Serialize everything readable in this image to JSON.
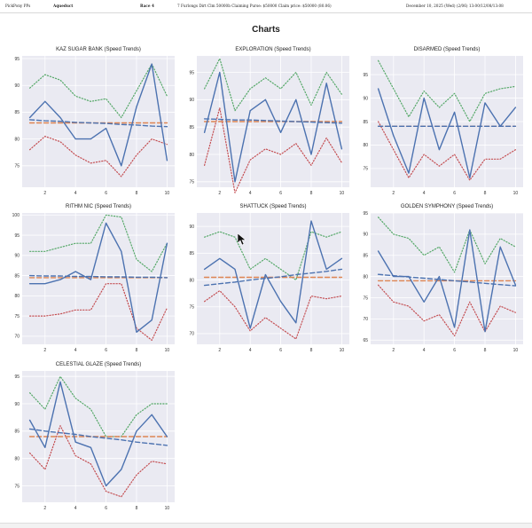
{
  "header": {
    "app": "PickPony PPs",
    "track": "Aqueduct",
    "race": "Race 4",
    "race_info": "7 Furlongs Dirt Clm 50000b Claiming Purse: $50000 Claim price: $50000 (80.06)",
    "date": "December 10, 2025 (Wed) (2/06) 13:00/12/08/13:08"
  },
  "page_title": "Charts",
  "chart_data": [
    {
      "type": "line",
      "title": "KAZ SUGAR BANK (Speed Trends)",
      "x": [
        1,
        2,
        3,
        4,
        5,
        6,
        7,
        8,
        9,
        10
      ],
      "series": [
        {
          "role": "main",
          "values": [
            84,
            87,
            84,
            80,
            80,
            82,
            75,
            86,
            94,
            76
          ]
        },
        {
          "role": "upper",
          "values": [
            89.5,
            92,
            91,
            88,
            87,
            87.5,
            84,
            89,
            94,
            88
          ]
        },
        {
          "role": "lower",
          "values": [
            78,
            80.5,
            79.5,
            77,
            75.5,
            76,
            73,
            77,
            80,
            79
          ]
        },
        {
          "role": "trend",
          "values": [
            83.6,
            83.4,
            83.3,
            83.1,
            83.0,
            82.9,
            82.7,
            82.6,
            82.4,
            82.3
          ]
        },
        {
          "role": "mean",
          "values": [
            83,
            83,
            83,
            83,
            83,
            83,
            83,
            83,
            83,
            83
          ]
        }
      ],
      "xticks": [
        2,
        4,
        6,
        8,
        10
      ],
      "yticks": [
        75,
        80,
        85,
        90,
        95
      ],
      "ylim": [
        71,
        95.5
      ],
      "grid": true
    },
    {
      "type": "line",
      "title": "EXPLORATION (Speed Trends)",
      "x": [
        1,
        2,
        3,
        4,
        5,
        6,
        7,
        8,
        9,
        10
      ],
      "series": [
        {
          "role": "main",
          "values": [
            84,
            95,
            75,
            88,
            90,
            84,
            90,
            80,
            93,
            81
          ]
        },
        {
          "role": "upper",
          "values": [
            92,
            97.5,
            88,
            92,
            94,
            92,
            95,
            89,
            95,
            91
          ]
        },
        {
          "role": "lower",
          "values": [
            78,
            88.5,
            73,
            79,
            81,
            80,
            82,
            78,
            83,
            78.5
          ]
        },
        {
          "role": "trend",
          "values": [
            86.5,
            86.4,
            86.3,
            86.3,
            86.2,
            86.1,
            86.0,
            85.9,
            85.8,
            85.7
          ]
        },
        {
          "role": "mean",
          "values": [
            86,
            86,
            86,
            86,
            86,
            86,
            86,
            86,
            86,
            86
          ]
        }
      ],
      "xticks": [
        2,
        4,
        6,
        8,
        10
      ],
      "yticks": [
        75,
        80,
        85,
        90,
        95
      ],
      "ylim": [
        74,
        98
      ],
      "grid": true
    },
    {
      "type": "line",
      "title": "DISARMED (Speed Trends)",
      "x": [
        1,
        2,
        3,
        4,
        5,
        6,
        7,
        8,
        9,
        10
      ],
      "series": [
        {
          "role": "main",
          "values": [
            92,
            82,
            74,
            90,
            79,
            87,
            73,
            89,
            84,
            88
          ]
        },
        {
          "role": "upper",
          "values": [
            98,
            92,
            86,
            91.5,
            88,
            91,
            85,
            91,
            92,
            92.5
          ]
        },
        {
          "role": "lower",
          "values": [
            85,
            79,
            73,
            78,
            75.5,
            78,
            72.5,
            77,
            77,
            79
          ]
        },
        {
          "role": "trend",
          "values": [
            84.0,
            84.0,
            84.0,
            84.0,
            84.0,
            84.0,
            84.0,
            84.0,
            84.0,
            84.0
          ]
        },
        {
          "role": "mean",
          "values": [
            84,
            84,
            84,
            84,
            84,
            84,
            84,
            84,
            84,
            84
          ]
        }
      ],
      "xticks": [
        2,
        4,
        6,
        8,
        10
      ],
      "yticks": [
        75,
        80,
        85,
        90,
        95
      ],
      "ylim": [
        71,
        99
      ],
      "grid": true
    },
    {
      "type": "line",
      "title": "RITHM NIC (Speed Trends)",
      "x": [
        1,
        2,
        3,
        4,
        5,
        6,
        7,
        8,
        9,
        10
      ],
      "series": [
        {
          "role": "main",
          "values": [
            83,
            83,
            84,
            86,
            84,
            98,
            91,
            71,
            74,
            93
          ]
        },
        {
          "role": "upper",
          "values": [
            91,
            91,
            92,
            93,
            93,
            100,
            99.5,
            89,
            86,
            93
          ]
        },
        {
          "role": "lower",
          "values": [
            75,
            75,
            75.5,
            76.5,
            76.5,
            83,
            83,
            72,
            69,
            77
          ]
        },
        {
          "role": "trend",
          "values": [
            85.0,
            84.9,
            84.9,
            84.8,
            84.8,
            84.7,
            84.7,
            84.6,
            84.6,
            84.5
          ]
        },
        {
          "role": "mean",
          "values": [
            84.5,
            84.5,
            84.5,
            84.5,
            84.5,
            84.5,
            84.5,
            84.5,
            84.5,
            84.5
          ]
        }
      ],
      "xticks": [
        2,
        4,
        6,
        8,
        10
      ],
      "yticks": [
        70,
        75,
        80,
        85,
        90,
        95,
        100
      ],
      "ylim": [
        68,
        100.5
      ],
      "grid": true
    },
    {
      "type": "line",
      "title": "SHATTUCK (Speed Trends)",
      "x": [
        1,
        2,
        3,
        4,
        5,
        6,
        7,
        8,
        9,
        10
      ],
      "series": [
        {
          "role": "main",
          "values": [
            82,
            84,
            82,
            71,
            81,
            76,
            72,
            91,
            82,
            84
          ]
        },
        {
          "role": "upper",
          "values": [
            88,
            89,
            88,
            82,
            84,
            82,
            80,
            89,
            88,
            89
          ]
        },
        {
          "role": "lower",
          "values": [
            76,
            78,
            75,
            70.5,
            73,
            71,
            69,
            77,
            76.5,
            77
          ]
        },
        {
          "role": "trend",
          "values": [
            79.0,
            79.3,
            79.6,
            80.0,
            80.3,
            80.6,
            81.0,
            81.3,
            81.6,
            82.0
          ]
        },
        {
          "role": "mean",
          "values": [
            80.5,
            80.5,
            80.5,
            80.5,
            80.5,
            80.5,
            80.5,
            80.5,
            80.5,
            80.5
          ]
        }
      ],
      "xticks": [
        2,
        4,
        6,
        8,
        10
      ],
      "yticks": [
        70,
        75,
        80,
        85,
        90
      ],
      "ylim": [
        68,
        92.5
      ],
      "grid": true
    },
    {
      "type": "line",
      "title": "GOLDEN SYMPHONY (Speed Trends)",
      "x": [
        1,
        2,
        3,
        4,
        5,
        6,
        7,
        8,
        9,
        10
      ],
      "series": [
        {
          "role": "main",
          "values": [
            86,
            80,
            80,
            74,
            80,
            68,
            91,
            67,
            87,
            78
          ]
        },
        {
          "role": "upper",
          "values": [
            94,
            90,
            89,
            85,
            87,
            81,
            91,
            83,
            89,
            87
          ]
        },
        {
          "role": "lower",
          "values": [
            78,
            74,
            73,
            69.5,
            71,
            66,
            74,
            67,
            73,
            71.5
          ]
        },
        {
          "role": "trend",
          "values": [
            80.5,
            80.2,
            79.9,
            79.6,
            79.3,
            79.0,
            78.7,
            78.4,
            78.1,
            77.8
          ]
        },
        {
          "role": "mean",
          "values": [
            79,
            79,
            79,
            79,
            79,
            79,
            79,
            79,
            79,
            79
          ]
        }
      ],
      "xticks": [
        2,
        4,
        6,
        8,
        10
      ],
      "yticks": [
        65,
        70,
        75,
        80,
        85,
        90,
        95
      ],
      "ylim": [
        64,
        95
      ],
      "grid": true
    },
    {
      "type": "line",
      "title": "CELESTIAL GLAZE (Speed Trends)",
      "x": [
        1,
        2,
        3,
        4,
        5,
        6,
        7,
        8,
        9,
        10
      ],
      "series": [
        {
          "role": "main",
          "values": [
            87,
            82,
            94,
            83,
            82,
            75,
            78,
            85,
            88,
            84
          ]
        },
        {
          "role": "upper",
          "values": [
            92,
            89,
            95,
            91,
            89,
            84,
            84,
            88,
            90,
            90
          ]
        },
        {
          "role": "lower",
          "values": [
            81,
            78,
            86,
            80.5,
            79,
            74,
            73,
            77,
            79.5,
            79
          ]
        },
        {
          "role": "trend",
          "values": [
            85.4,
            85.0,
            84.7,
            84.4,
            84.0,
            83.7,
            83.4,
            83.0,
            82.7,
            82.4
          ]
        },
        {
          "role": "mean",
          "values": [
            84,
            84,
            84,
            84,
            84,
            84,
            84,
            84,
            84,
            84
          ]
        }
      ],
      "xticks": [
        2,
        4,
        6,
        8,
        10
      ],
      "yticks": [
        75,
        80,
        85,
        90,
        95
      ],
      "ylim": [
        72,
        96
      ],
      "grid": true
    }
  ],
  "colors": {
    "plot_bg": "#eaeaf2",
    "grid": "#ffffff",
    "main": "#4c72b0",
    "upper": "#55a868",
    "lower": "#c44e52",
    "trend": "#4c72b0",
    "mean": "#dd8452"
  }
}
